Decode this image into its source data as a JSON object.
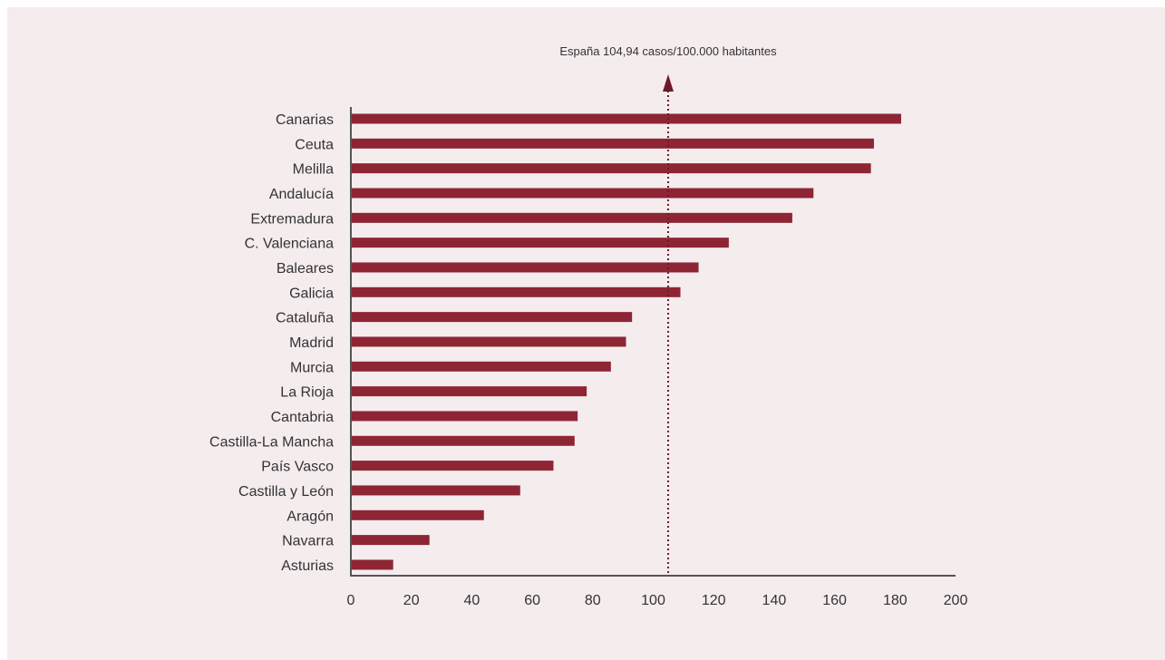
{
  "chart_data": {
    "type": "bar",
    "orientation": "horizontal",
    "categories": [
      "Canarias",
      "Ceuta",
      "Melilla",
      "Andalucía",
      "Extremadura",
      "C. Valenciana",
      "Baleares",
      "Galicia",
      "Cataluña",
      "Madrid",
      "Murcia",
      "La Rioja",
      "Cantabria",
      "Castilla-La Mancha",
      "País Vasco",
      "Castilla y León",
      "Aragón",
      "Navarra",
      "Asturias"
    ],
    "values": [
      182,
      173,
      172,
      153,
      146,
      125,
      115,
      109,
      93,
      91,
      86,
      78,
      75,
      74,
      67,
      56,
      44,
      26,
      14
    ],
    "xlim": [
      0,
      200
    ],
    "xticks": [
      0,
      20,
      40,
      60,
      80,
      100,
      120,
      140,
      160,
      180,
      200
    ],
    "grid": false,
    "reference_line": {
      "value": 104.94,
      "label": "España 104,94 casos/100.000 habitantes"
    },
    "colors": {
      "bar": "#8e2535",
      "axis": "#555555",
      "reference": "#6b1a2a"
    }
  }
}
